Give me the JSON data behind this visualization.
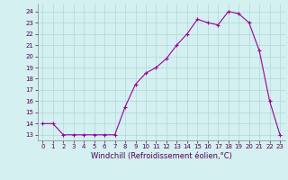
{
  "x": [
    0,
    1,
    2,
    3,
    4,
    5,
    6,
    7,
    8,
    9,
    10,
    11,
    12,
    13,
    14,
    15,
    16,
    17,
    18,
    19,
    20,
    21,
    22,
    23
  ],
  "y": [
    14,
    14,
    13,
    13,
    13,
    13,
    13,
    13,
    15.5,
    17.5,
    18.5,
    19.0,
    19.8,
    21.0,
    22.0,
    23.3,
    23.0,
    22.8,
    24.0,
    23.8,
    23.0,
    20.5,
    16.0,
    13.0
  ],
  "line_color": "#990099",
  "marker": "+",
  "marker_size": 3,
  "bg_color": "#d4f0f0",
  "grid_color": "#b0d8d8",
  "xlabel": "Windchill (Refroidissement éolien,°C)",
  "ylim": [
    12.5,
    24.7
  ],
  "xlim": [
    -0.5,
    23.5
  ],
  "yticks": [
    13,
    14,
    15,
    16,
    17,
    18,
    19,
    20,
    21,
    22,
    23,
    24
  ],
  "xticks": [
    0,
    1,
    2,
    3,
    4,
    5,
    6,
    7,
    8,
    9,
    10,
    11,
    12,
    13,
    14,
    15,
    16,
    17,
    18,
    19,
    20,
    21,
    22,
    23
  ],
  "tick_label_size": 5.0,
  "xlabel_size": 6.0,
  "line_width": 0.8
}
